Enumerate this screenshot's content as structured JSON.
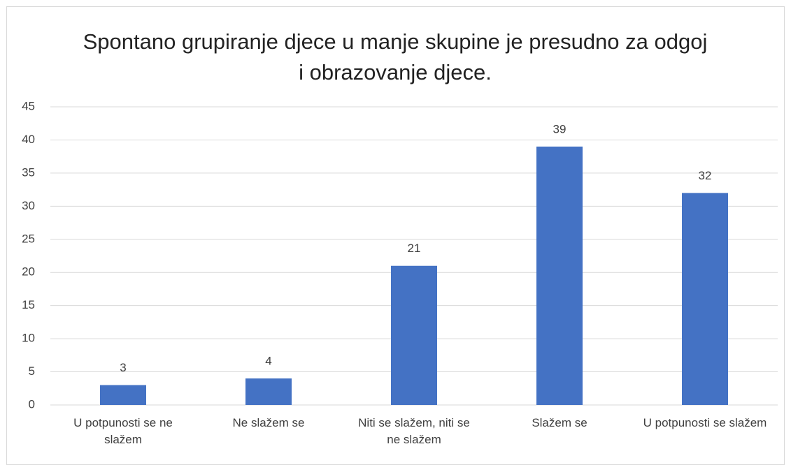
{
  "chart_data": {
    "type": "bar",
    "title": "Spontano grupiranje djece u manje skupine je presudno za odgoj i obrazovanje djece.",
    "categories": [
      "U potpunosti se ne slažem",
      "Ne slažem se",
      "Niti se slažem, niti se ne slažem",
      "Slažem se",
      "U potpunosti se slažem"
    ],
    "values": [
      3,
      4,
      21,
      39,
      32
    ],
    "color": "#4472c4",
    "ylim": [
      0,
      45
    ],
    "yticks": [
      0,
      5,
      10,
      15,
      20,
      25,
      30,
      35,
      40,
      45
    ],
    "grid": true
  }
}
